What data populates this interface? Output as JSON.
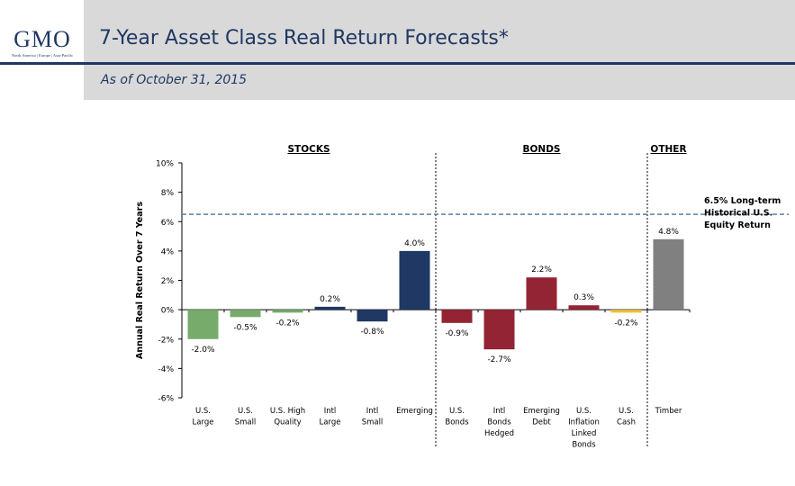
{
  "logo": {
    "text": "GMO",
    "tagline": "North America | Europe | Asia-Pacific"
  },
  "header": {
    "title": "7-Year Asset Class Real Return Forecasts*",
    "subtitle": "As of October 31, 2015"
  },
  "colors": {
    "navy": "#1f3864",
    "green": "#77ab6b",
    "darkred": "#922433",
    "yellow": "#f2c037",
    "gray": "#808080"
  },
  "chart_data": {
    "type": "bar",
    "title": "7-Year Asset Class Real Return Forecasts*",
    "ylabel": "Annual Real Return Over 7 Years",
    "xlabel": "",
    "ylim": [
      -6,
      10
    ],
    "yticks": [
      -6,
      -4,
      -2,
      0,
      2,
      4,
      6,
      8,
      10
    ],
    "ytick_labels": [
      "-6%",
      "-4%",
      "-2%",
      "0%",
      "2%",
      "4%",
      "6%",
      "8%",
      "10%"
    ],
    "groups": [
      {
        "label": "STOCKS",
        "start": 0,
        "end": 5
      },
      {
        "label": "BONDS",
        "start": 6,
        "end": 10
      },
      {
        "label": "OTHER",
        "start": 11,
        "end": 11
      }
    ],
    "categories": [
      [
        "U.S.",
        "Large"
      ],
      [
        "U.S.",
        "Small"
      ],
      [
        "U.S. High",
        "Quality"
      ],
      [
        "Intl",
        "Large"
      ],
      [
        "Intl",
        "Small"
      ],
      [
        "Emerging"
      ],
      [
        "U.S.",
        "Bonds"
      ],
      [
        "Intl",
        "Bonds",
        "Hedged"
      ],
      [
        "Emerging",
        "Debt"
      ],
      [
        "U.S.",
        "Inflation",
        "Linked",
        "Bonds"
      ],
      [
        "U.S.",
        "Cash"
      ],
      [
        "Timber"
      ]
    ],
    "values": [
      -2.0,
      -0.5,
      -0.2,
      0.2,
      -0.8,
      4.0,
      -0.9,
      -2.7,
      2.2,
      0.3,
      -0.2,
      4.8
    ],
    "value_labels": [
      "-2.0%",
      "-0.5%",
      "-0.2%",
      "0.2%",
      "-0.8%",
      "4.0%",
      "-0.9%",
      "-2.7%",
      "2.2%",
      "0.3%",
      "-0.2%",
      "4.8%"
    ],
    "bar_colors": [
      "#77ab6b",
      "#77ab6b",
      "#77ab6b",
      "#1f3864",
      "#1f3864",
      "#1f3864",
      "#922433",
      "#922433",
      "#922433",
      "#922433",
      "#f2c037",
      "#808080"
    ],
    "reference_line": {
      "value": 6.5,
      "label_lines": [
        "6.5% Long-term",
        "Historical U.S.",
        "Equity Return"
      ]
    }
  }
}
